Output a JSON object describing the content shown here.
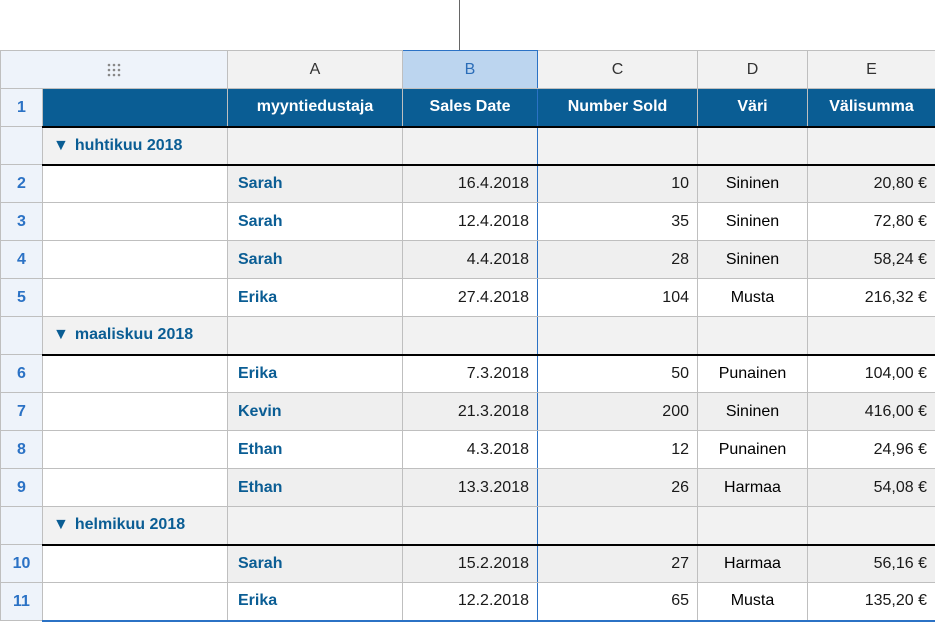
{
  "columns": {
    "A": "A",
    "B": "B",
    "C": "C",
    "D": "D",
    "E": "E"
  },
  "headers": {
    "rep": "myyntiedustaja",
    "date": "Sales Date",
    "sold": "Number Sold",
    "color": "Väri",
    "subtotal": "Välisumma"
  },
  "rowNums": [
    "1",
    "2",
    "3",
    "4",
    "5",
    "6",
    "7",
    "8",
    "9",
    "10",
    "11"
  ],
  "groups": [
    {
      "label": "huhtikuu 2018",
      "rows": [
        {
          "idx": "2",
          "rep": "Sarah",
          "date": "16.4.2018",
          "sold": "10",
          "color": "Sininen",
          "sub": "20,80 €",
          "alt": true
        },
        {
          "idx": "3",
          "rep": "Sarah",
          "date": "12.4.2018",
          "sold": "35",
          "color": "Sininen",
          "sub": "72,80 €",
          "alt": false
        },
        {
          "idx": "4",
          "rep": "Sarah",
          "date": "4.4.2018",
          "sold": "28",
          "color": "Sininen",
          "sub": "58,24 €",
          "alt": true
        },
        {
          "idx": "5",
          "rep": "Erika",
          "date": "27.4.2018",
          "sold": "104",
          "color": "Musta",
          "sub": "216,32 €",
          "alt": false
        }
      ]
    },
    {
      "label": "maaliskuu 2018",
      "rows": [
        {
          "idx": "6",
          "rep": "Erika",
          "date": "7.3.2018",
          "sold": "50",
          "color": "Punainen",
          "sub": "104,00 €",
          "alt": false
        },
        {
          "idx": "7",
          "rep": "Kevin",
          "date": "21.3.2018",
          "sold": "200",
          "color": "Sininen",
          "sub": "416,00 €",
          "alt": true
        },
        {
          "idx": "8",
          "rep": "Ethan",
          "date": "4.3.2018",
          "sold": "12",
          "color": "Punainen",
          "sub": "24,96 €",
          "alt": false
        },
        {
          "idx": "9",
          "rep": "Ethan",
          "date": "13.3.2018",
          "sold": "26",
          "color": "Harmaa",
          "sub": "54,08 €",
          "alt": true
        }
      ]
    },
    {
      "label": "helmikuu 2018",
      "rows": [
        {
          "idx": "10",
          "rep": "Sarah",
          "date": "15.2.2018",
          "sold": "27",
          "color": "Harmaa",
          "sub": "56,16 €",
          "alt": true
        },
        {
          "idx": "11",
          "rep": "Erika",
          "date": "12.2.2018",
          "sold": "65",
          "color": "Musta",
          "sub": "135,20 €",
          "alt": false
        }
      ]
    }
  ],
  "style": {
    "headerBg": "#0a5d94",
    "headerFg": "#ffffff",
    "rowHeadBg": "#eef3fa",
    "accent": "#2b72c5",
    "altRowBg": "#efefef",
    "groupBg": "#f2f2f2",
    "border": "#bfbfbf"
  },
  "selectedColumn": "B"
}
